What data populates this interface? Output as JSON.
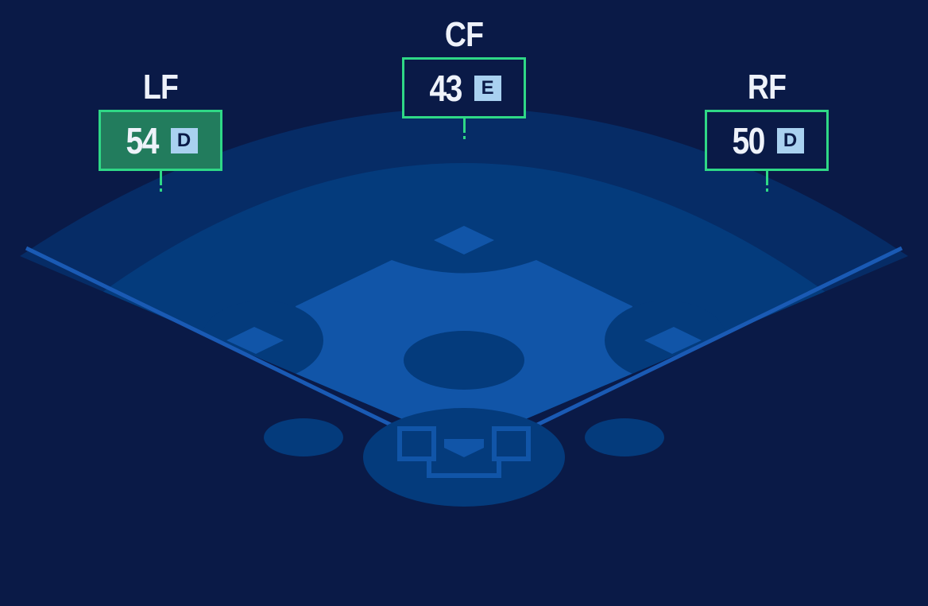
{
  "colors": {
    "background": "#0a1a47",
    "outfield_warning": "#062c66",
    "grass": "#043b7c",
    "infield": "#1155a8",
    "accent": "#2fd886",
    "highlight": "#227c5d",
    "grade_bg": "#a9d1f0"
  },
  "positions": [
    {
      "label": "LF",
      "value": "54",
      "grade": "D",
      "highlighted": true
    },
    {
      "label": "CF",
      "value": "43",
      "grade": "E",
      "highlighted": false
    },
    {
      "label": "RF",
      "value": "50",
      "grade": "D",
      "highlighted": false
    }
  ]
}
